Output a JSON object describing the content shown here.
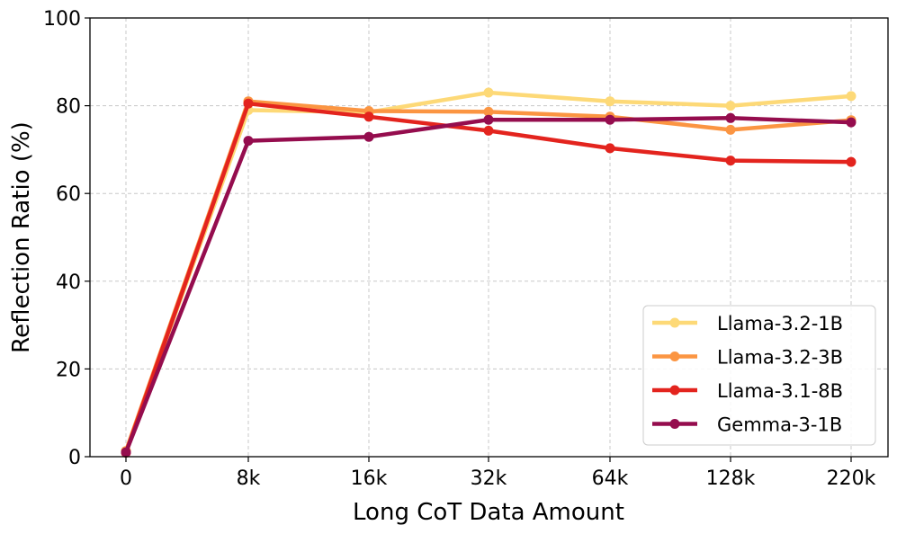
{
  "chart_data": {
    "type": "line",
    "title": "",
    "xlabel": "Long CoT Data Amount",
    "ylabel": "Reflection Ratio (%)",
    "categories": [
      "0",
      "8k",
      "16k",
      "32k",
      "64k",
      "128k",
      "220k"
    ],
    "ylim": [
      0,
      100
    ],
    "yticks": [
      0,
      20,
      40,
      60,
      80,
      100
    ],
    "grid": true,
    "legend_position": "bottom-right",
    "series": [
      {
        "name": "Llama-3.2-1B",
        "color": "#FDD977",
        "values": [
          1.2,
          79.0,
          78.5,
          83.0,
          81.0,
          80.0,
          82.2
        ]
      },
      {
        "name": "Llama-3.2-3B",
        "color": "#FB9542",
        "values": [
          1.3,
          81.0,
          78.8,
          78.6,
          77.5,
          74.5,
          76.7
        ]
      },
      {
        "name": "Llama-3.1-8B",
        "color": "#E3241E",
        "values": [
          0.9,
          80.5,
          77.5,
          74.3,
          70.3,
          67.5,
          67.2
        ]
      },
      {
        "name": "Gemma-3-1B",
        "color": "#950D4E",
        "values": [
          1.0,
          72.0,
          72.9,
          76.8,
          76.8,
          77.2,
          76.2
        ]
      }
    ]
  }
}
